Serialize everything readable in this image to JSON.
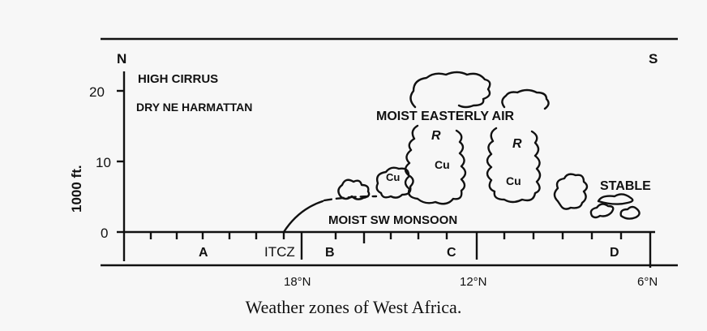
{
  "figure": {
    "caption": "Weather zones of West Africa.",
    "direction_left": "N",
    "direction_right": "S",
    "y_axis_label": "1000 ft.",
    "y_ticks": [
      "20",
      "10",
      "0"
    ],
    "x_ticks": [
      "18°N",
      "12°N",
      "6°N"
    ],
    "zone_labels": [
      "A",
      "ITCZ",
      "B",
      "C",
      "D"
    ],
    "annotations": {
      "high_cirrus": "HIGH CIRRUS",
      "harmattan": "DRY NE HARMATTAN",
      "easterly_air": "MOIST EASTERLY AIR",
      "monsoon": "MOIST SW MONSOON",
      "stable": "STABLE",
      "cu_small": "Cu",
      "cu_tower_1": "Cu",
      "cu_tower_2": "Cu",
      "cb_symbol_1": "R",
      "cb_symbol_2": "R"
    }
  }
}
